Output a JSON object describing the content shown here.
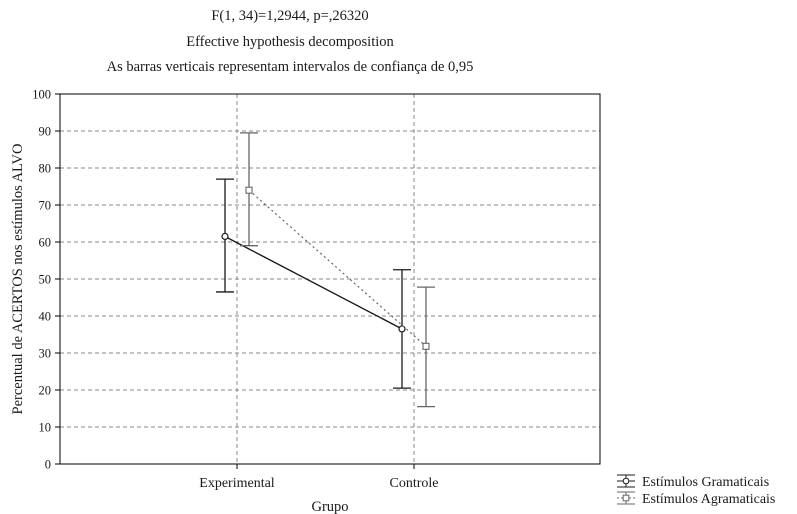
{
  "chart_data": {
    "type": "line",
    "title": "F(1, 34)=1,2944, p=,26320",
    "subtitle": "Effective hypothesis decomposition",
    "note": "As barras verticais representam intervalos de confiança de 0,95",
    "xlabel": "Grupo",
    "ylabel": "Percentual de ACERTOS nos estímulos ALVO",
    "categories": [
      "Experimental",
      "Controle"
    ],
    "ylim": [
      0,
      100
    ],
    "yticks": [
      0,
      10,
      20,
      30,
      40,
      50,
      60,
      70,
      80,
      90,
      100
    ],
    "grid": true,
    "legend_position": "bottom-right",
    "series": [
      {
        "name": "Estímulos Gramaticais",
        "marker": "circle",
        "line": "solid",
        "color": "#1a1a1a",
        "values": [
          61.5,
          36.5
        ],
        "ci_low": [
          46.5,
          20.5
        ],
        "ci_high": [
          77,
          52.5
        ]
      },
      {
        "name": "Estímulos Agramaticais",
        "marker": "square",
        "line": "dotted",
        "color": "#666666",
        "values": [
          74,
          31.8
        ],
        "ci_low": [
          59,
          15.5
        ],
        "ci_high": [
          89.5,
          47.8
        ]
      }
    ]
  }
}
